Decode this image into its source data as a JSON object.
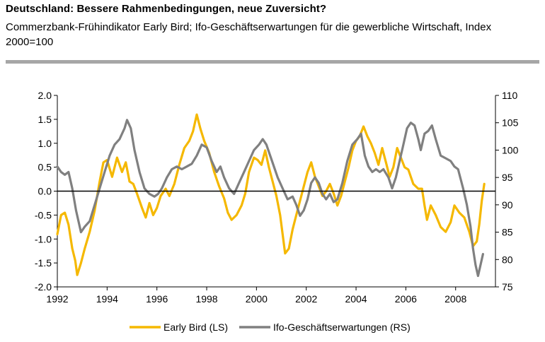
{
  "header": {
    "title": "Deutschland: Bessere Rahmenbedingungen, neue Zuversicht?",
    "subtitle": "Commerzbank-Frühindikator Early Bird; Ifo-Geschäftserwartungen für die gewerbliche Wirtschaft, Index 2000=100"
  },
  "chart_data": {
    "type": "line",
    "title": "Deutschland: Bessere Rahmenbedingungen, neue Zuversicht?",
    "xlabel": "",
    "ylabel_left": "Early Bird (LS)",
    "ylabel_right": "Ifo-Geschäftserwartungen (RS)",
    "xlim": [
      1992,
      2009.6
    ],
    "ylim_left": [
      -2.0,
      2.0
    ],
    "ylim_right": [
      75,
      110
    ],
    "x_ticks": [
      "1992",
      "1994",
      "1996",
      "1998",
      "2000",
      "2002",
      "2004",
      "2006",
      "2008"
    ],
    "y_left_ticks": [
      "2.0",
      "1.5",
      "1.0",
      "0.5",
      "0.0",
      "-0.5",
      "-1.0",
      "-1.5",
      "-2.0"
    ],
    "y_right_ticks": [
      "110",
      "105",
      "100",
      "95",
      "90",
      "85",
      "80",
      "75"
    ],
    "legend_position": "bottom",
    "series": [
      {
        "name": "Early Bird (LS)",
        "axis": "left",
        "color": "#f5b800",
        "points": [
          [
            1992.0,
            -0.9
          ],
          [
            1992.15,
            -0.5
          ],
          [
            1992.3,
            -0.45
          ],
          [
            1992.45,
            -0.7
          ],
          [
            1992.6,
            -1.2
          ],
          [
            1992.72,
            -1.45
          ],
          [
            1992.8,
            -1.75
          ],
          [
            1992.95,
            -1.5
          ],
          [
            1993.1,
            -1.2
          ],
          [
            1993.3,
            -0.85
          ],
          [
            1993.5,
            -0.4
          ],
          [
            1993.7,
            0.2
          ],
          [
            1993.85,
            0.6
          ],
          [
            1994.0,
            0.65
          ],
          [
            1994.2,
            0.3
          ],
          [
            1994.4,
            0.7
          ],
          [
            1994.6,
            0.4
          ],
          [
            1994.75,
            0.6
          ],
          [
            1994.9,
            0.2
          ],
          [
            1995.05,
            0.15
          ],
          [
            1995.2,
            -0.05
          ],
          [
            1995.4,
            -0.35
          ],
          [
            1995.55,
            -0.55
          ],
          [
            1995.7,
            -0.25
          ],
          [
            1995.85,
            -0.5
          ],
          [
            1996.0,
            -0.35
          ],
          [
            1996.15,
            -0.1
          ],
          [
            1996.35,
            0.05
          ],
          [
            1996.5,
            -0.1
          ],
          [
            1996.7,
            0.15
          ],
          [
            1996.9,
            0.55
          ],
          [
            1997.1,
            0.9
          ],
          [
            1997.3,
            1.05
          ],
          [
            1997.45,
            1.25
          ],
          [
            1997.6,
            1.6
          ],
          [
            1997.75,
            1.3
          ],
          [
            1997.9,
            1.05
          ],
          [
            1998.1,
            0.8
          ],
          [
            1998.3,
            0.4
          ],
          [
            1998.5,
            0.1
          ],
          [
            1998.7,
            -0.15
          ],
          [
            1998.85,
            -0.45
          ],
          [
            1999.0,
            -0.6
          ],
          [
            1999.2,
            -0.5
          ],
          [
            1999.4,
            -0.3
          ],
          [
            1999.55,
            -0.05
          ],
          [
            1999.7,
            0.4
          ],
          [
            1999.9,
            0.7
          ],
          [
            2000.05,
            0.65
          ],
          [
            2000.2,
            0.55
          ],
          [
            2000.35,
            0.85
          ],
          [
            2000.5,
            0.5
          ],
          [
            2000.65,
            0.2
          ],
          [
            2000.8,
            -0.1
          ],
          [
            2000.95,
            -0.5
          ],
          [
            2001.05,
            -0.9
          ],
          [
            2001.15,
            -1.3
          ],
          [
            2001.3,
            -1.2
          ],
          [
            2001.45,
            -0.8
          ],
          [
            2001.6,
            -0.5
          ],
          [
            2001.75,
            -0.2
          ],
          [
            2001.9,
            0.1
          ],
          [
            2002.05,
            0.4
          ],
          [
            2002.2,
            0.6
          ],
          [
            2002.35,
            0.3
          ],
          [
            2002.5,
            0.1
          ],
          [
            2002.65,
            -0.1
          ],
          [
            2002.8,
            0.0
          ],
          [
            2002.95,
            0.15
          ],
          [
            2003.1,
            -0.05
          ],
          [
            2003.25,
            -0.3
          ],
          [
            2003.4,
            -0.1
          ],
          [
            2003.55,
            0.2
          ],
          [
            2003.7,
            0.5
          ],
          [
            2003.85,
            0.85
          ],
          [
            2004.0,
            1.05
          ],
          [
            2004.15,
            1.15
          ],
          [
            2004.3,
            1.35
          ],
          [
            2004.45,
            1.15
          ],
          [
            2004.6,
            1.0
          ],
          [
            2004.75,
            0.8
          ],
          [
            2004.9,
            0.55
          ],
          [
            2005.05,
            0.9
          ],
          [
            2005.2,
            0.6
          ],
          [
            2005.35,
            0.3
          ],
          [
            2005.5,
            0.5
          ],
          [
            2005.65,
            0.9
          ],
          [
            2005.8,
            0.7
          ],
          [
            2005.95,
            0.5
          ],
          [
            2006.1,
            0.45
          ],
          [
            2006.3,
            0.15
          ],
          [
            2006.5,
            0.05
          ],
          [
            2006.65,
            0.05
          ],
          [
            2006.75,
            -0.3
          ],
          [
            2006.85,
            -0.6
          ],
          [
            2007.0,
            -0.3
          ],
          [
            2007.2,
            -0.5
          ],
          [
            2007.4,
            -0.75
          ],
          [
            2007.6,
            -0.85
          ],
          [
            2007.8,
            -0.65
          ],
          [
            2007.95,
            -0.3
          ],
          [
            2008.15,
            -0.45
          ],
          [
            2008.35,
            -0.55
          ],
          [
            2008.55,
            -0.85
          ],
          [
            2008.7,
            -1.15
          ],
          [
            2008.85,
            -1.05
          ],
          [
            2008.95,
            -0.7
          ],
          [
            2009.05,
            -0.2
          ],
          [
            2009.15,
            0.15
          ]
        ]
      },
      {
        "name": "Ifo-Geschäftserwartungen (RS)",
        "axis": "right",
        "color": "#808080",
        "points": [
          [
            1992.0,
            97
          ],
          [
            1992.15,
            96
          ],
          [
            1992.3,
            95.5
          ],
          [
            1992.45,
            96
          ],
          [
            1992.6,
            93
          ],
          [
            1992.75,
            89
          ],
          [
            1992.95,
            85
          ],
          [
            1993.1,
            86
          ],
          [
            1993.3,
            87
          ],
          [
            1993.5,
            90
          ],
          [
            1993.7,
            93
          ],
          [
            1993.9,
            96
          ],
          [
            1994.1,
            99
          ],
          [
            1994.3,
            101
          ],
          [
            1994.5,
            102
          ],
          [
            1994.7,
            104
          ],
          [
            1994.8,
            105.5
          ],
          [
            1994.95,
            104
          ],
          [
            1995.1,
            100
          ],
          [
            1995.3,
            96
          ],
          [
            1995.5,
            93
          ],
          [
            1995.7,
            92
          ],
          [
            1995.9,
            91.5
          ],
          [
            1996.05,
            92
          ],
          [
            1996.2,
            93
          ],
          [
            1996.4,
            95
          ],
          [
            1996.6,
            96.5
          ],
          [
            1996.8,
            97
          ],
          [
            1997.0,
            96.5
          ],
          [
            1997.2,
            97
          ],
          [
            1997.4,
            97.5
          ],
          [
            1997.6,
            99
          ],
          [
            1997.8,
            101
          ],
          [
            1998.0,
            100.5
          ],
          [
            1998.2,
            98
          ],
          [
            1998.4,
            96
          ],
          [
            1998.55,
            97
          ],
          [
            1998.7,
            95
          ],
          [
            1998.9,
            93
          ],
          [
            1999.1,
            92
          ],
          [
            1999.3,
            94
          ],
          [
            1999.5,
            96
          ],
          [
            1999.7,
            98
          ],
          [
            1999.9,
            100
          ],
          [
            2000.1,
            101
          ],
          [
            2000.25,
            102
          ],
          [
            2000.4,
            101
          ],
          [
            2000.55,
            99
          ],
          [
            2000.7,
            97
          ],
          [
            2000.85,
            95
          ],
          [
            2001.05,
            93
          ],
          [
            2001.25,
            91
          ],
          [
            2001.45,
            91.5
          ],
          [
            2001.6,
            90
          ],
          [
            2001.75,
            88
          ],
          [
            2001.9,
            89
          ],
          [
            2002.05,
            91
          ],
          [
            2002.2,
            94
          ],
          [
            2002.35,
            95
          ],
          [
            2002.5,
            94
          ],
          [
            2002.65,
            92
          ],
          [
            2002.8,
            91
          ],
          [
            2002.95,
            92
          ],
          [
            2003.1,
            90.5
          ],
          [
            2003.25,
            91
          ],
          [
            2003.45,
            94
          ],
          [
            2003.65,
            98
          ],
          [
            2003.85,
            101
          ],
          [
            2004.05,
            102
          ],
          [
            2004.2,
            103
          ],
          [
            2004.35,
            99
          ],
          [
            2004.5,
            97
          ],
          [
            2004.65,
            96
          ],
          [
            2004.8,
            96.5
          ],
          [
            2004.95,
            96
          ],
          [
            2005.1,
            96.5
          ],
          [
            2005.3,
            95
          ],
          [
            2005.45,
            93
          ],
          [
            2005.6,
            95
          ],
          [
            2005.75,
            98
          ],
          [
            2005.9,
            101
          ],
          [
            2006.05,
            104
          ],
          [
            2006.2,
            105
          ],
          [
            2006.35,
            104.5
          ],
          [
            2006.5,
            102
          ],
          [
            2006.6,
            100
          ],
          [
            2006.75,
            103
          ],
          [
            2006.9,
            103.5
          ],
          [
            2007.05,
            104.5
          ],
          [
            2007.2,
            102
          ],
          [
            2007.4,
            99
          ],
          [
            2007.6,
            98.5
          ],
          [
            2007.8,
            98
          ],
          [
            2007.95,
            97
          ],
          [
            2008.1,
            96.5
          ],
          [
            2008.3,
            93
          ],
          [
            2008.45,
            90
          ],
          [
            2008.6,
            86
          ],
          [
            2008.7,
            82
          ],
          [
            2008.8,
            79
          ],
          [
            2008.9,
            77
          ],
          [
            2009.0,
            79
          ],
          [
            2009.1,
            81
          ]
        ]
      }
    ]
  }
}
